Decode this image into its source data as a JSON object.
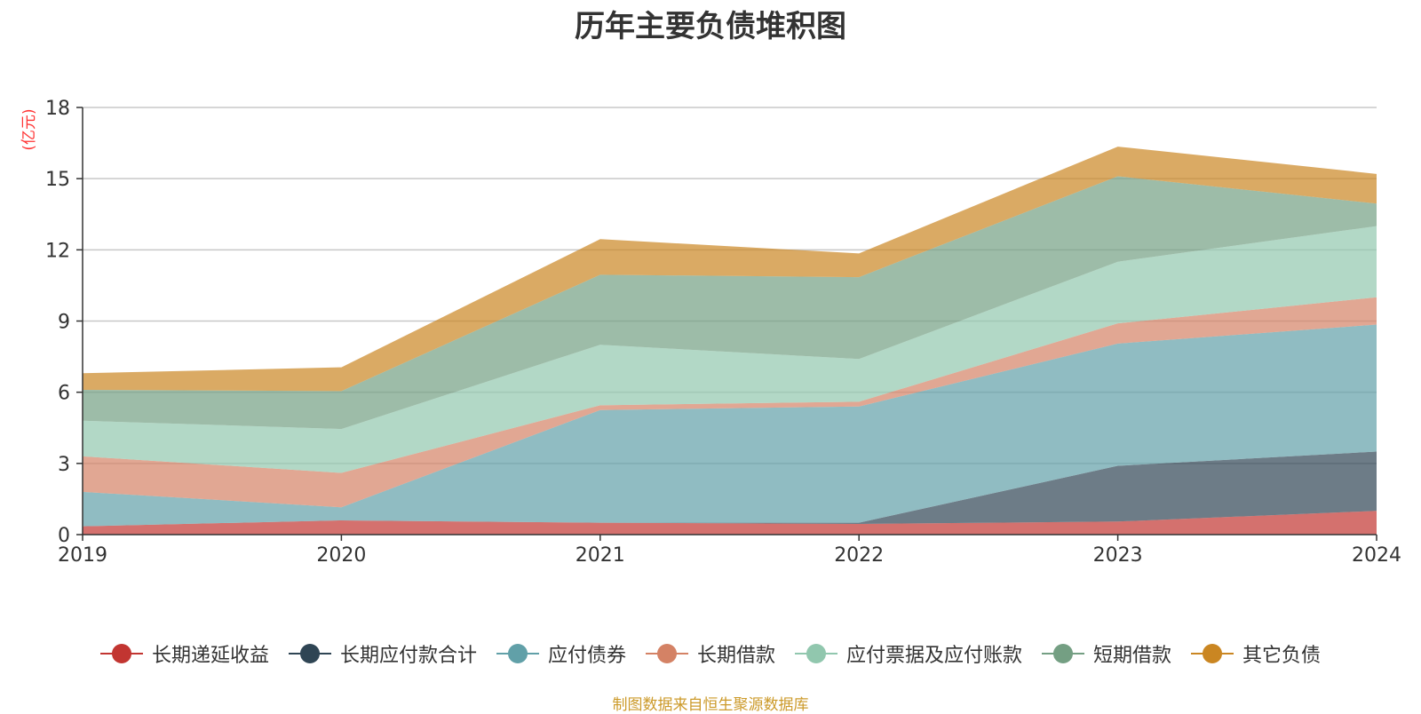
{
  "title": "历年主要负债堆积图",
  "source_note": "制图数据来自恒生聚源数据库",
  "chart_data": {
    "type": "area",
    "stacked": true,
    "title": "历年主要负债堆积图",
    "unit_label": "(亿元)",
    "x": [
      "2019",
      "2020",
      "2021",
      "2022",
      "2023",
      "2024"
    ],
    "ylim": [
      0,
      18
    ],
    "yticks": [
      0,
      3,
      6,
      9,
      12,
      15,
      18
    ],
    "grid": true,
    "legend_position": "bottom",
    "series": [
      {
        "name": "长期递延收益",
        "color": "#c23531",
        "values": [
          0.35,
          0.6,
          0.5,
          0.45,
          0.55,
          1.0
        ]
      },
      {
        "name": "长期应付款合计",
        "color": "#2f4554",
        "values": [
          0.0,
          0.0,
          0.0,
          0.05,
          2.35,
          2.5
        ]
      },
      {
        "name": "应付债券",
        "color": "#61a0a8",
        "values": [
          1.45,
          0.55,
          4.75,
          4.9,
          5.15,
          5.35
        ]
      },
      {
        "name": "长期借款",
        "color": "#d48265",
        "values": [
          1.5,
          1.45,
          0.2,
          0.2,
          0.85,
          1.15
        ]
      },
      {
        "name": "应付票据及应付账款",
        "color": "#91c7ae",
        "values": [
          1.5,
          1.85,
          2.55,
          1.8,
          2.6,
          3.0
        ]
      },
      {
        "name": "短期借款",
        "color": "#749f83",
        "values": [
          1.3,
          1.6,
          2.95,
          3.45,
          3.6,
          0.95
        ]
      },
      {
        "name": "其它负债",
        "color": "#ca8622",
        "values": [
          0.7,
          1.0,
          1.5,
          1.0,
          1.25,
          1.25
        ]
      }
    ]
  }
}
